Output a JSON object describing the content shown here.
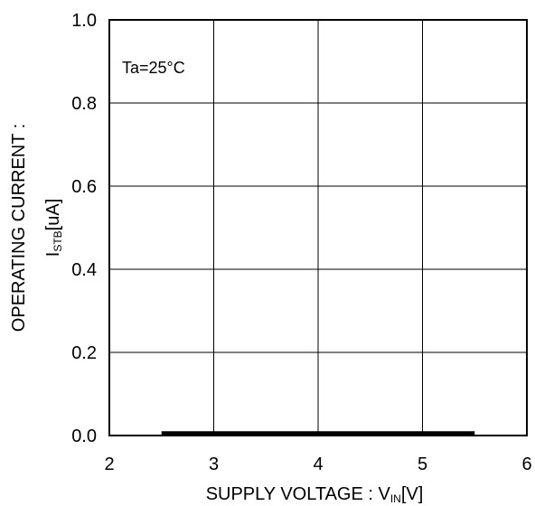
{
  "chart_data": {
    "type": "line",
    "annotation": "Ta=25°C",
    "xlabel": {
      "main": "SUPPLY VOLTAGE : V",
      "sub": "IN",
      "unit": "[V]"
    },
    "ylabel": {
      "line1": "OPERATING CURRENT :",
      "main": "I",
      "sub": "STB",
      "unit": "[uA]"
    },
    "xlim": [
      2,
      6
    ],
    "ylim": [
      0,
      1.0
    ],
    "xticks": [
      "2",
      "3",
      "4",
      "5",
      "6"
    ],
    "yticks": [
      "0.0",
      "0.2",
      "0.4",
      "0.6",
      "0.8",
      "1.0"
    ],
    "grid": true,
    "series": [
      {
        "x": [
          2.5,
          5.5
        ],
        "y": [
          0.005,
          0.005
        ]
      }
    ]
  }
}
